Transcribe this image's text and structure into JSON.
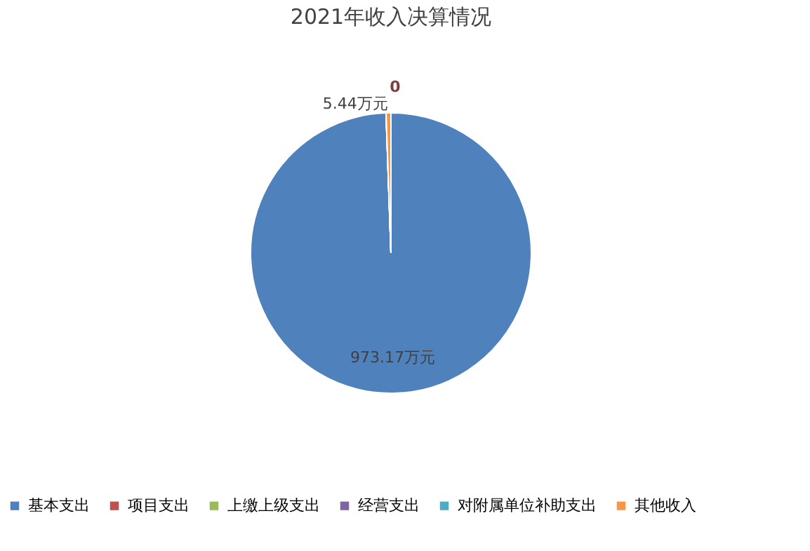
{
  "chart_data": {
    "type": "pie",
    "title": "2021年收入决算情况",
    "categories": [
      "基本支出",
      "项目支出",
      "上缴上级支出",
      "经营支出",
      "对附属单位补助支出",
      "其他收入"
    ],
    "values": [
      973.17,
      0,
      0,
      0,
      0,
      5.44
    ],
    "colors": [
      "#4f81bd",
      "#c0504d",
      "#9bbb59",
      "#8064a2",
      "#4bacc6",
      "#f79646"
    ],
    "value_labels": [
      "973.17万元",
      "0",
      null,
      null,
      null,
      "5.44万元"
    ],
    "legend": "bottom"
  }
}
